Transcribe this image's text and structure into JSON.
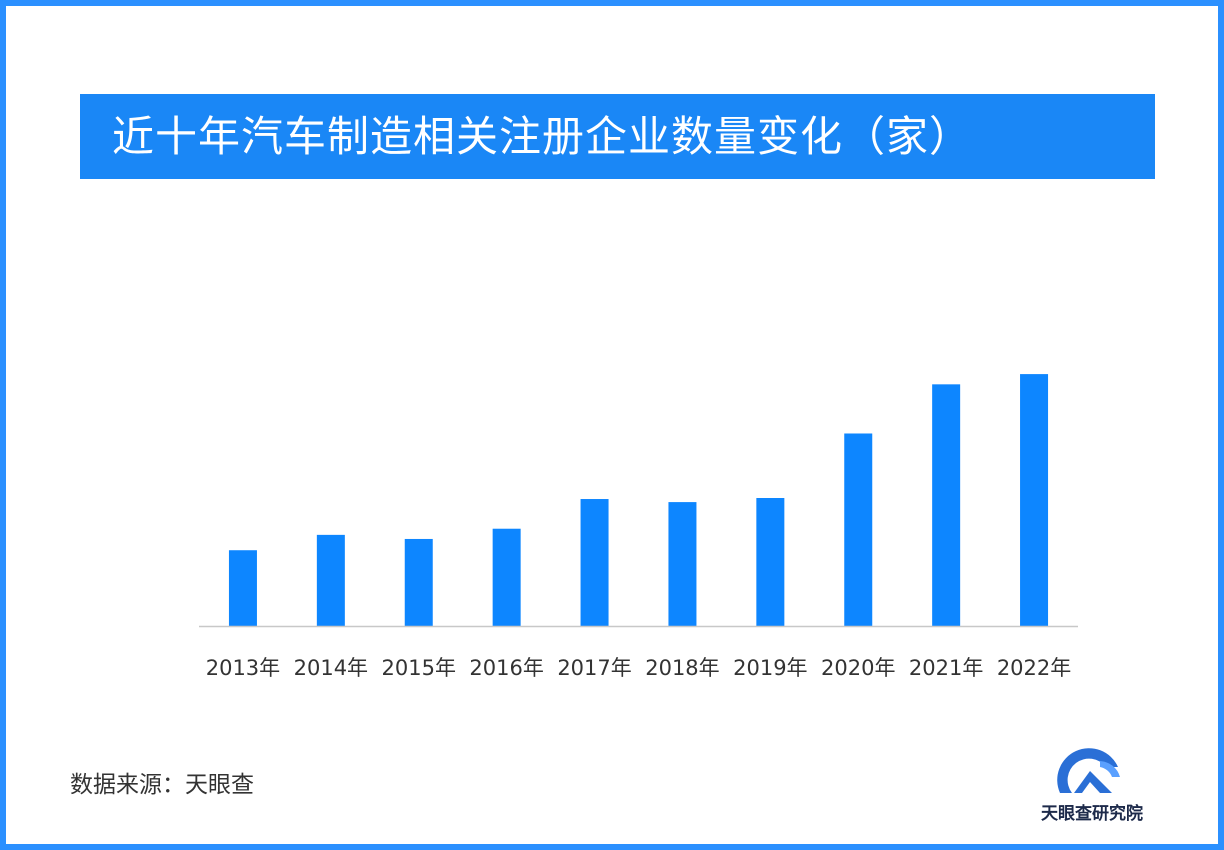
{
  "colors": {
    "border": "#2b90ff",
    "banner": "#1a87f6",
    "bar": "#0d86ff",
    "axis": "#c8c8c8",
    "label": "#333333"
  },
  "source": "数据来源：天眼查",
  "logo": {
    "icon": "tianyancha-logo-icon",
    "text": "天眼查研究院"
  },
  "chart_data": {
    "type": "bar",
    "title": "近十年汽车制造相关注册企业数量变化（家）",
    "categories": [
      "2013年",
      "2014年",
      "2015年",
      "2016年",
      "2017年",
      "2018年",
      "2019年",
      "2020年",
      "2021年",
      "2022年"
    ],
    "values": [
      74,
      89,
      85,
      95,
      124,
      121,
      125,
      188,
      236,
      246
    ],
    "xlabel": "",
    "ylabel": "",
    "ylim": [
      0,
      250
    ],
    "grid": false,
    "legend": "none"
  }
}
